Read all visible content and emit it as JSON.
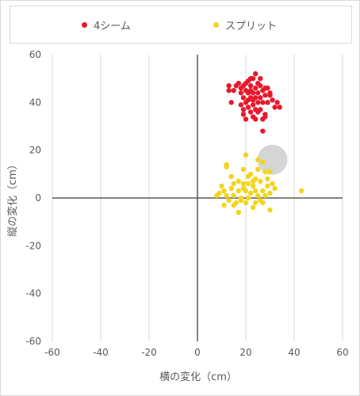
{
  "chart_data": {
    "type": "scatter",
    "xlabel": "横の変化（cm）",
    "ylabel": "縦の変化（cm）",
    "xlim": [
      -60,
      60
    ],
    "ylim": [
      -60,
      60
    ],
    "xticks": [
      -60,
      -40,
      -20,
      0,
      20,
      40,
      60
    ],
    "yticks": [
      -60,
      -40,
      -20,
      0,
      20,
      40,
      60
    ],
    "grid": "vertical",
    "legend_position": "top",
    "series": [
      {
        "name": "4シーム",
        "color": "#e8192c",
        "points": [
          [
            19,
            47
          ],
          [
            21,
            49
          ],
          [
            23,
            50
          ],
          [
            24,
            52
          ],
          [
            22,
            47
          ],
          [
            20,
            45
          ],
          [
            25,
            48
          ],
          [
            26,
            47
          ],
          [
            27,
            45
          ],
          [
            28,
            46
          ],
          [
            21,
            44
          ],
          [
            23,
            44
          ],
          [
            24,
            46
          ],
          [
            18,
            46
          ],
          [
            17,
            48
          ],
          [
            16,
            47
          ],
          [
            15,
            45
          ],
          [
            13,
            47
          ],
          [
            13,
            45
          ],
          [
            19,
            42
          ],
          [
            20,
            40
          ],
          [
            22,
            42
          ],
          [
            24,
            42
          ],
          [
            26,
            42
          ],
          [
            28,
            43
          ],
          [
            30,
            43
          ],
          [
            31,
            41
          ],
          [
            33,
            40
          ],
          [
            34,
            38
          ],
          [
            32,
            38
          ],
          [
            29,
            40
          ],
          [
            27,
            40
          ],
          [
            25,
            40
          ],
          [
            23,
            39
          ],
          [
            21,
            38
          ],
          [
            19,
            37
          ],
          [
            18,
            39
          ],
          [
            14,
            40
          ],
          [
            22,
            36
          ],
          [
            24,
            37
          ],
          [
            26,
            37
          ],
          [
            28,
            35
          ],
          [
            23,
            34
          ],
          [
            20,
            33
          ],
          [
            24,
            33
          ],
          [
            27,
            33
          ],
          [
            28,
            34
          ],
          [
            27,
            28
          ],
          [
            22,
            50
          ],
          [
            25,
            44
          ],
          [
            29,
            46
          ],
          [
            30,
            44
          ],
          [
            20,
            48
          ],
          [
            26,
            50
          ],
          [
            18,
            44
          ],
          [
            21,
            41
          ],
          [
            25,
            36
          ],
          [
            23,
            41
          ],
          [
            19,
            35
          ],
          [
            22,
            45
          ]
        ]
      },
      {
        "name": "スプリット",
        "color": "#f2d51c",
        "points": [
          [
            20,
            18
          ],
          [
            12,
            14
          ],
          [
            12,
            13
          ],
          [
            25,
            16
          ],
          [
            27,
            15
          ],
          [
            19,
            12
          ],
          [
            22,
            10
          ],
          [
            25,
            12
          ],
          [
            28,
            11
          ],
          [
            30,
            11
          ],
          [
            21,
            9
          ],
          [
            24,
            8
          ],
          [
            26,
            7
          ],
          [
            29,
            8
          ],
          [
            17,
            7
          ],
          [
            19,
            6
          ],
          [
            21,
            6
          ],
          [
            23,
            5
          ],
          [
            15,
            6
          ],
          [
            14,
            4
          ],
          [
            17,
            3
          ],
          [
            20,
            3
          ],
          [
            24,
            3
          ],
          [
            27,
            3
          ],
          [
            30,
            2
          ],
          [
            32,
            4
          ],
          [
            11,
            3
          ],
          [
            9,
            2
          ],
          [
            8,
            1
          ],
          [
            12,
            1
          ],
          [
            15,
            1
          ],
          [
            18,
            0
          ],
          [
            21,
            0
          ],
          [
            25,
            1
          ],
          [
            28,
            1
          ],
          [
            13,
            -1
          ],
          [
            16,
            -2
          ],
          [
            20,
            -2
          ],
          [
            24,
            -2
          ],
          [
            27,
            -2
          ],
          [
            11,
            -3
          ],
          [
            15,
            -3
          ],
          [
            23,
            -4
          ],
          [
            30,
            -5
          ],
          [
            17,
            -6
          ],
          [
            43,
            3
          ],
          [
            26,
            -1
          ],
          [
            22,
            2
          ],
          [
            19,
            4
          ],
          [
            31,
            6
          ],
          [
            10,
            5
          ],
          [
            14,
            9
          ],
          [
            29,
            5
          ],
          [
            18,
            -1
          ],
          [
            23,
            7
          ]
        ]
      }
    ],
    "highlight": {
      "x": 31,
      "y": 16,
      "color": "#d0d0d0"
    }
  }
}
